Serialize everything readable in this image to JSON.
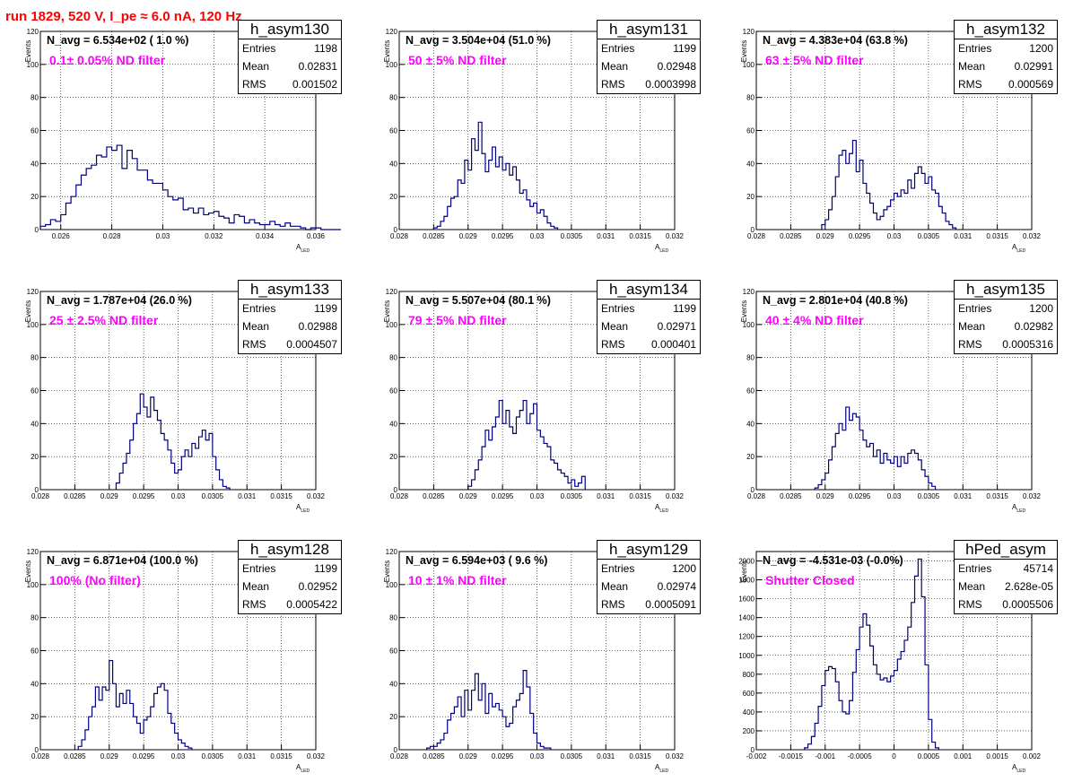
{
  "header": "run 1829,   520 V, I_pe ≈ 6.0 nA, 120 Hz",
  "stats_labels": {
    "entries": "Entries",
    "mean": "Mean",
    "rms": "RMS"
  },
  "colors": {
    "histogram": "#000080",
    "header": "#ff0000",
    "filter_label": "#ff00ff"
  },
  "chart_data": [
    {
      "type": "histogram",
      "name": "h_asym130",
      "navg_text": "N_avg = 6.534e+02 ( 1.0 %)",
      "filter_text": "0.1± 0.05% ND filter",
      "stats": {
        "entries": "1198",
        "mean": "0.02831",
        "rms": "0.001502"
      },
      "xlabel": "A",
      "xlabel_sub": "LED",
      "ylabel": "Events",
      "xlim": [
        0.0252,
        0.036
      ],
      "ylim": [
        0,
        120
      ],
      "xticks": [
        0.026,
        0.028,
        0.03,
        0.032,
        0.034,
        0.036
      ],
      "xtick_labels": [
        "0.026",
        "0.028",
        "0.03",
        "0.032",
        "0.034",
        "0.036"
      ],
      "yticks": [
        0,
        20,
        40,
        60,
        80,
        100,
        120
      ],
      "ytick_labels": [
        "0",
        "20",
        "40",
        "60",
        "80",
        "100",
        "120"
      ],
      "x_start": 0.0252,
      "bin_width": 0.0002,
      "values": [
        2,
        3,
        6,
        5,
        9,
        16,
        20,
        27,
        33,
        37,
        39,
        45,
        44,
        50,
        48,
        51,
        37,
        48,
        43,
        36,
        36,
        30,
        28,
        28,
        24,
        20,
        18,
        19,
        12,
        13,
        10,
        13,
        9,
        10,
        11,
        8,
        7,
        4,
        9,
        8,
        4,
        6,
        4,
        3,
        3,
        5,
        3,
        2,
        4,
        2,
        2,
        1,
        0,
        1,
        1,
        0,
        0,
        0,
        0,
        0,
        0,
        0,
        0,
        0
      ]
    },
    {
      "type": "histogram",
      "name": "h_asym131",
      "navg_text": "N_avg = 3.504e+04 (51.0 %)",
      "filter_text": "50 ± 5% ND filter",
      "stats": {
        "entries": "1199",
        "mean": "0.02948",
        "rms": "0.0003998"
      },
      "xlabel": "A",
      "xlabel_sub": "LED",
      "ylabel": "Events",
      "xlim": [
        0.028,
        0.032
      ],
      "ylim": [
        0,
        120
      ],
      "xticks": [
        0.028,
        0.0285,
        0.029,
        0.0295,
        0.03,
        0.0305,
        0.031,
        0.0315,
        0.032
      ],
      "xtick_labels": [
        "0.028",
        "0.0285",
        "0.029",
        "0.0295",
        "0.03",
        "0.0305",
        "0.031",
        "0.0315",
        "0.032"
      ],
      "yticks": [
        0,
        20,
        40,
        60,
        80,
        100,
        120
      ],
      "ytick_labels": [
        "0",
        "20",
        "40",
        "60",
        "80",
        "100",
        "120"
      ],
      "x_start": 0.0285,
      "bin_width": 5e-05,
      "values": [
        1,
        2,
        5,
        8,
        14,
        19,
        20,
        30,
        28,
        42,
        36,
        55,
        48,
        65,
        46,
        35,
        42,
        50,
        38,
        44,
        36,
        40,
        33,
        38,
        30,
        22,
        24,
        18,
        14,
        16,
        10,
        12,
        8,
        4,
        2,
        1
      ]
    },
    {
      "type": "histogram",
      "name": "h_asym132",
      "navg_text": "N_avg = 4.383e+04 (63.8 %)",
      "filter_text": "63 ± 5% ND filter",
      "stats": {
        "entries": "1200",
        "mean": "0.02991",
        "rms": "0.000569"
      },
      "xlabel": "A",
      "xlabel_sub": "LED",
      "ylabel": "Events",
      "xlim": [
        0.028,
        0.032
      ],
      "ylim": [
        0,
        120
      ],
      "xticks": [
        0.028,
        0.0285,
        0.029,
        0.0295,
        0.03,
        0.0305,
        0.031,
        0.0315,
        0.032
      ],
      "xtick_labels": [
        "0.028",
        "0.0285",
        "0.029",
        "0.0295",
        "0.03",
        "0.0305",
        "0.031",
        "0.0315",
        "0.032"
      ],
      "yticks": [
        0,
        20,
        40,
        60,
        80,
        100,
        120
      ],
      "ytick_labels": [
        "0",
        "20",
        "40",
        "60",
        "80",
        "100",
        "120"
      ],
      "x_start": 0.02895,
      "bin_width": 5e-05,
      "values": [
        3,
        6,
        12,
        20,
        32,
        45,
        48,
        40,
        46,
        54,
        35,
        42,
        28,
        22,
        16,
        10,
        6,
        8,
        12,
        14,
        18,
        22,
        20,
        24,
        22,
        30,
        25,
        34,
        38,
        34,
        28,
        32,
        24,
        22,
        14,
        10,
        5,
        3,
        1
      ]
    },
    {
      "type": "histogram",
      "name": "h_asym133",
      "navg_text": "N_avg = 1.787e+04 (26.0 %)",
      "filter_text": "25 ± 2.5% ND filter",
      "stats": {
        "entries": "1199",
        "mean": "0.02988",
        "rms": "0.0004507"
      },
      "xlabel": "A",
      "xlabel_sub": "LED",
      "ylabel": "Events",
      "xlim": [
        0.028,
        0.032
      ],
      "ylim": [
        0,
        120
      ],
      "xticks": [
        0.028,
        0.0285,
        0.029,
        0.0295,
        0.03,
        0.0305,
        0.031,
        0.0315,
        0.032
      ],
      "xtick_labels": [
        "0.028",
        "0.0285",
        "0.029",
        "0.0295",
        "0.03",
        "0.0305",
        "0.031",
        "0.0315",
        "0.032"
      ],
      "yticks": [
        0,
        20,
        40,
        60,
        80,
        100,
        120
      ],
      "ytick_labels": [
        "0",
        "20",
        "40",
        "60",
        "80",
        "100",
        "120"
      ],
      "x_start": 0.0291,
      "bin_width": 5e-05,
      "values": [
        4,
        10,
        16,
        22,
        30,
        40,
        46,
        58,
        50,
        44,
        56,
        48,
        42,
        34,
        30,
        24,
        16,
        10,
        12,
        20,
        24,
        20,
        28,
        25,
        32,
        36,
        30,
        34,
        20,
        12,
        6,
        2,
        1
      ]
    },
    {
      "type": "histogram",
      "name": "h_asym134",
      "navg_text": "N_avg = 5.507e+04 (80.1 %)",
      "filter_text": "79 ± 5% ND filter",
      "stats": {
        "entries": "1199",
        "mean": "0.02971",
        "rms": "0.000401"
      },
      "xlabel": "A",
      "xlabel_sub": "LED",
      "ylabel": "Events",
      "xlim": [
        0.028,
        0.032
      ],
      "ylim": [
        0,
        120
      ],
      "xticks": [
        0.028,
        0.0285,
        0.029,
        0.0295,
        0.03,
        0.0305,
        0.031,
        0.0315,
        0.032
      ],
      "xtick_labels": [
        "0.028",
        "0.0285",
        "0.029",
        "0.0295",
        "0.03",
        "0.0305",
        "0.031",
        "0.0315",
        "0.032"
      ],
      "yticks": [
        0,
        20,
        40,
        60,
        80,
        100,
        120
      ],
      "ytick_labels": [
        "0",
        "20",
        "40",
        "60",
        "80",
        "100",
        "120"
      ],
      "x_start": 0.029,
      "bin_width": 5e-05,
      "values": [
        2,
        6,
        12,
        18,
        26,
        36,
        30,
        38,
        44,
        54,
        40,
        48,
        38,
        34,
        44,
        48,
        54,
        40,
        46,
        52,
        36,
        32,
        28,
        26,
        18,
        16,
        12,
        10,
        8,
        4,
        6,
        2,
        4,
        8
      ]
    },
    {
      "type": "histogram",
      "name": "h_asym135",
      "navg_text": "N_avg = 2.801e+04 (40.8 %)",
      "filter_text": "40 ± 4% ND filter",
      "stats": {
        "entries": "1200",
        "mean": "0.02982",
        "rms": "0.0005316"
      },
      "xlabel": "A",
      "xlabel_sub": "LED",
      "ylabel": "Events",
      "xlim": [
        0.028,
        0.032
      ],
      "ylim": [
        0,
        120
      ],
      "xticks": [
        0.028,
        0.0285,
        0.029,
        0.0295,
        0.03,
        0.0305,
        0.031,
        0.0315,
        0.032
      ],
      "xtick_labels": [
        "0.028",
        "0.0285",
        "0.029",
        "0.0295",
        "0.03",
        "0.0305",
        "0.031",
        "0.0315",
        "0.032"
      ],
      "yticks": [
        0,
        20,
        40,
        60,
        80,
        100,
        120
      ],
      "ytick_labels": [
        "0",
        "20",
        "40",
        "60",
        "80",
        "100",
        "120"
      ],
      "x_start": 0.02885,
      "bin_width": 5e-05,
      "values": [
        1,
        3,
        6,
        10,
        18,
        26,
        34,
        40,
        36,
        50,
        42,
        46,
        44,
        36,
        30,
        26,
        28,
        20,
        24,
        16,
        22,
        18,
        16,
        20,
        14,
        20,
        16,
        22,
        24,
        22,
        18,
        12,
        8,
        4,
        2
      ]
    },
    {
      "type": "histogram",
      "name": "h_asym128",
      "navg_text": "N_avg = 6.871e+04 (100.0 %)",
      "filter_text": "100% (No filter)",
      "stats": {
        "entries": "1199",
        "mean": "0.02952",
        "rms": "0.0005422"
      },
      "xlabel": "A",
      "xlabel_sub": "LED",
      "ylabel": "Events",
      "xlim": [
        0.028,
        0.032
      ],
      "ylim": [
        0,
        120
      ],
      "xticks": [
        0.028,
        0.0285,
        0.029,
        0.0295,
        0.03,
        0.0305,
        0.031,
        0.0315,
        0.032
      ],
      "xtick_labels": [
        "0.028",
        "0.0285",
        "0.029",
        "0.0295",
        "0.03",
        "0.0305",
        "0.031",
        "0.0315",
        "0.032"
      ],
      "yticks": [
        0,
        20,
        40,
        60,
        80,
        100,
        120
      ],
      "ytick_labels": [
        "0",
        "20",
        "40",
        "60",
        "80",
        "100",
        "120"
      ],
      "x_start": 0.02855,
      "bin_width": 5e-05,
      "values": [
        2,
        6,
        12,
        20,
        26,
        38,
        30,
        38,
        36,
        54,
        40,
        26,
        34,
        28,
        36,
        28,
        20,
        16,
        10,
        18,
        20,
        26,
        34,
        38,
        40,
        36,
        22,
        16,
        10,
        6,
        4,
        2,
        1
      ]
    },
    {
      "type": "histogram",
      "name": "h_asym129",
      "navg_text": "N_avg = 6.594e+03 ( 9.6 %)",
      "filter_text": "10 ± 1% ND filter",
      "stats": {
        "entries": "1200",
        "mean": "0.02974",
        "rms": "0.0005091"
      },
      "xlabel": "A",
      "xlabel_sub": "LED",
      "ylabel": "Events",
      "xlim": [
        0.028,
        0.032
      ],
      "ylim": [
        0,
        120
      ],
      "xticks": [
        0.028,
        0.0285,
        0.029,
        0.0295,
        0.03,
        0.0305,
        0.031,
        0.0315,
        0.032
      ],
      "xtick_labels": [
        "0.028",
        "0.0285",
        "0.029",
        "0.0295",
        "0.03",
        "0.0305",
        "0.031",
        "0.0315",
        "0.032"
      ],
      "yticks": [
        0,
        20,
        40,
        60,
        80,
        100,
        120
      ],
      "ytick_labels": [
        "0",
        "20",
        "40",
        "60",
        "80",
        "100",
        "120"
      ],
      "x_start": 0.0284,
      "bin_width": 5e-05,
      "values": [
        1,
        2,
        2,
        4,
        6,
        10,
        18,
        22,
        26,
        32,
        20,
        36,
        24,
        36,
        46,
        30,
        40,
        22,
        34,
        26,
        28,
        24,
        20,
        14,
        16,
        26,
        30,
        34,
        48,
        38,
        22,
        10,
        4,
        2,
        1,
        1
      ]
    },
    {
      "type": "histogram",
      "name": "hPed_asym",
      "navg_text": "N_avg = -4.531e-03 (-0.0%)",
      "filter_text": "Shutter Closed",
      "stats": {
        "entries": "45714",
        "mean": "2.628e-05",
        "rms": "0.0005506"
      },
      "xlabel": "A",
      "xlabel_sub": "LED",
      "ylabel": "Events",
      "xlim": [
        -0.002,
        0.002
      ],
      "ylim": [
        0,
        2100
      ],
      "xticks": [
        -0.002,
        -0.0015,
        -0.001,
        -0.0005,
        0,
        0.0005,
        0.001,
        0.0015,
        0.002
      ],
      "xtick_labels": [
        "-0.002",
        "-0.0015",
        "-0.001",
        "-0.0005",
        "0",
        "0.0005",
        "0.001",
        "0.0015",
        "0.002"
      ],
      "yticks": [
        0,
        200,
        400,
        600,
        800,
        1000,
        1200,
        1400,
        1600,
        1800,
        2000
      ],
      "ytick_labels": [
        "0",
        "200",
        "400",
        "600",
        "800",
        "1000",
        "1200",
        "1400",
        "1600",
        "1800",
        "2000"
      ],
      "x_start": -0.0013,
      "bin_width": 5e-05,
      "values": [
        20,
        60,
        140,
        280,
        460,
        680,
        840,
        880,
        860,
        720,
        520,
        400,
        380,
        520,
        820,
        1060,
        1300,
        1440,
        1320,
        1100,
        900,
        800,
        740,
        760,
        720,
        780,
        840,
        960,
        1040,
        1160,
        1300,
        1560,
        1840,
        2020,
        1620,
        900,
        320,
        80,
        20
      ]
    }
  ]
}
